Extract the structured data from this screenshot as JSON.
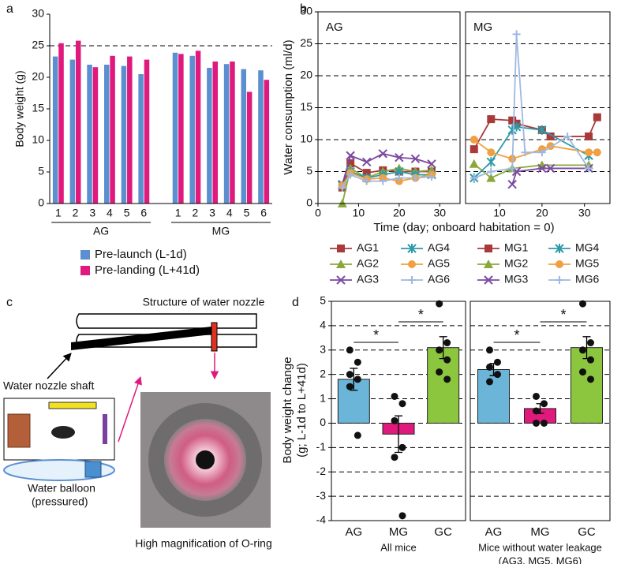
{
  "chart_data": [
    {
      "type": "bar",
      "label": "a",
      "ylabel": "Body weight (g)",
      "ylim": [
        0,
        30
      ],
      "yticks": [
        0,
        5,
        10,
        15,
        20,
        25,
        30
      ],
      "hline": 25,
      "groups": [
        {
          "name": "AG",
          "categories": [
            "1",
            "2",
            "3",
            "4",
            "5",
            "6"
          ]
        },
        {
          "name": "MG",
          "categories": [
            "1",
            "2",
            "3",
            "4",
            "5",
            "6"
          ]
        }
      ],
      "series": [
        {
          "name": "Pre-launch (L-1d)",
          "color": "#5b8fd0",
          "values": [
            23.3,
            22.8,
            22.0,
            22.0,
            21.8,
            20.5,
            23.9,
            23.4,
            21.5,
            22.1,
            21.3,
            21.1
          ]
        },
        {
          "name": "Pre-landing (L+41d)",
          "color": "#e0197d",
          "values": [
            25.4,
            25.8,
            21.6,
            23.4,
            23.3,
            22.8,
            23.7,
            24.2,
            22.5,
            22.5,
            17.7,
            19.6
          ]
        }
      ]
    },
    {
      "type": "line",
      "label": "b",
      "xlabel": "Time (day; onboard habitation = 0)",
      "ylabel": "Water consumption (ml/d)",
      "ylim": [
        0,
        30
      ],
      "yticks": [
        0,
        5,
        10,
        15,
        20,
        25,
        30
      ],
      "grid": true,
      "subplots": [
        {
          "title": "AG",
          "xlim": [
            0,
            35
          ],
          "xticks": [
            0,
            10,
            20,
            30
          ],
          "series": [
            {
              "name": "AG1",
              "color": "#a83a3a",
              "marker": "square",
              "x": [
                6,
                8,
                12,
                16,
                20,
                24,
                28
              ],
              "values": [
                2.5,
                6.3,
                4.8,
                5.2,
                5.0,
                5.0,
                5.0
              ]
            },
            {
              "name": "AG2",
              "color": "#8aa83a",
              "marker": "triangle",
              "x": [
                6,
                8,
                12,
                16,
                20,
                24,
                28
              ],
              "values": [
                0,
                5.5,
                4.0,
                5.0,
                5.5,
                5.0,
                5.2
              ]
            },
            {
              "name": "AG3",
              "color": "#7b4aa0",
              "marker": "x",
              "x": [
                6,
                8,
                12,
                16,
                20,
                24,
                28
              ],
              "values": [
                3.0,
                7.5,
                6.5,
                7.8,
                7.2,
                7.0,
                6.2
              ]
            },
            {
              "name": "AG4",
              "color": "#2e9aa8",
              "marker": "star",
              "x": [
                6,
                8,
                12,
                16,
                20,
                24,
                28
              ],
              "values": [
                2.8,
                5.0,
                4.0,
                4.5,
                5.0,
                4.5,
                4.5
              ]
            },
            {
              "name": "AG5",
              "color": "#f0a040",
              "marker": "circle",
              "x": [
                6,
                8,
                12,
                16,
                20,
                24,
                28
              ],
              "values": [
                2.8,
                4.8,
                3.8,
                4.0,
                3.5,
                4.0,
                4.5
              ]
            },
            {
              "name": "AG6",
              "color": "#9fb8e0",
              "marker": "plus",
              "x": [
                6,
                8,
                12,
                16,
                20,
                24,
                28
              ],
              "values": [
                2.5,
                4.5,
                3.5,
                3.5,
                4.0,
                4.0,
                4.2
              ]
            }
          ]
        },
        {
          "title": "MG",
          "xlim": [
            2,
            36
          ],
          "xticks": [
            10,
            20,
            30
          ],
          "series": [
            {
              "name": "MG1",
              "color": "#a83a3a",
              "marker": "square",
              "x": [
                4,
                8,
                13,
                14,
                20,
                22,
                31,
                33
              ],
              "values": [
                8.5,
                13.2,
                13.0,
                12.5,
                11.5,
                10.5,
                10.5,
                13.5
              ]
            },
            {
              "name": "MG2",
              "color": "#8aa83a",
              "marker": "triangle",
              "x": [
                4,
                8,
                13,
                20,
                31
              ],
              "values": [
                6.2,
                4.0,
                5.5,
                6.0,
                6.0
              ]
            },
            {
              "name": "MG3",
              "color": "#7b4aa0",
              "marker": "x",
              "x": [
                13,
                14,
                20,
                22,
                31
              ],
              "values": [
                3.0,
                5.0,
                5.5,
                5.5,
                5.5
              ]
            },
            {
              "name": "MG4",
              "color": "#2e9aa8",
              "marker": "star",
              "x": [
                4,
                8,
                13,
                14,
                20,
                31
              ],
              "values": [
                4.0,
                6.5,
                11.5,
                12.0,
                11.5,
                7.5
              ]
            },
            {
              "name": "MG5",
              "color": "#f0a040",
              "marker": "circle",
              "x": [
                4,
                8,
                13,
                20,
                22,
                31,
                33
              ],
              "values": [
                10.0,
                8.0,
                7.0,
                8.5,
                9.0,
                8.0,
                8.0
              ]
            },
            {
              "name": "MG6",
              "color": "#9fb8e0",
              "marker": "plus",
              "x": [
                4,
                8,
                13,
                14,
                16,
                20,
                26,
                31
              ],
              "values": [
                4.0,
                5.0,
                5.5,
                26.5,
                8.0,
                8.0,
                10.5,
                5.5
              ]
            }
          ]
        }
      ]
    },
    {
      "type": "bar",
      "label": "d",
      "ylabel": [
        "Body weight change",
        "(g; L-1d to L+41d)"
      ],
      "ylim": [
        -4,
        5
      ],
      "yticks": [
        -4,
        -3,
        -2,
        -1,
        0,
        1,
        2,
        3,
        4,
        5
      ],
      "grid": true,
      "subplots": [
        {
          "caption": [
            "All mice"
          ],
          "categories": [
            "AG",
            "MG",
            "GC"
          ],
          "colors": [
            "#6bb5d9",
            "#e0197d",
            "#8cc63f"
          ],
          "values": [
            1.8,
            -0.45,
            3.1
          ],
          "errors": [
            0.45,
            0.75,
            0.45
          ],
          "dots": [
            [
              3.0,
              2.5,
              2.0,
              1.8,
              1.5,
              -0.5
            ],
            [
              1.1,
              0.8,
              0.1,
              -1.0,
              -1.4,
              -3.8
            ],
            [
              4.9,
              3.3,
              3.0,
              2.6,
              2.1,
              1.8
            ]
          ],
          "significance": [
            "*",
            "*"
          ]
        },
        {
          "caption": [
            "Mice without water leakage",
            "(AG3, MG5, MG6)"
          ],
          "categories": [
            "AG",
            "MG",
            "GC"
          ],
          "colors": [
            "#6bb5d9",
            "#e0197d",
            "#8cc63f"
          ],
          "values": [
            2.2,
            0.6,
            3.1
          ],
          "errors": [
            0.25,
            0.2,
            0.45
          ],
          "dots": [
            [
              3.0,
              2.5,
              2.3,
              2.0,
              1.7
            ],
            [
              1.1,
              0.8,
              0.5,
              0.0,
              0.0
            ],
            [
              4.9,
              3.3,
              3.0,
              2.6,
              2.1,
              1.8
            ]
          ],
          "significance": [
            "*",
            "*"
          ]
        }
      ]
    }
  ],
  "diagram": {
    "label": "c",
    "title": "Structure of water nozzle",
    "shaft": "Water nozzle shaft",
    "balloon": [
      "Water balloon",
      "(pressured)"
    ],
    "caption": "High magnification of O-ring"
  }
}
